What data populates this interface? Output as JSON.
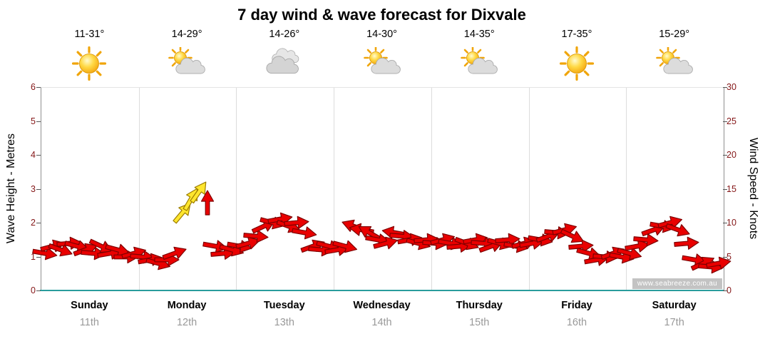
{
  "title": "7 day wind & wave forecast for Dixvale",
  "watermark": "www.seabreeze.com.au",
  "axes": {
    "left_label": "Wave Height - Metres",
    "right_label": "Wind Speed - Knots",
    "wave_ticks": [
      0,
      1,
      2,
      3,
      4,
      5,
      6
    ],
    "wind_ticks": [
      0,
      5,
      10,
      15,
      20,
      25,
      30
    ],
    "wave_range": [
      0,
      6
    ],
    "wind_range": [
      0,
      30
    ]
  },
  "days": [
    {
      "name": "Sunday",
      "date": "11th",
      "temp": "11-31°",
      "icon": "sun"
    },
    {
      "name": "Monday",
      "date": "12th",
      "temp": "14-29°",
      "icon": "sun-cloud"
    },
    {
      "name": "Tuesday",
      "date": "13th",
      "temp": "14-26°",
      "icon": "cloud"
    },
    {
      "name": "Wednesday",
      "date": "14th",
      "temp": "14-30°",
      "icon": "sun-cloud"
    },
    {
      "name": "Thursday",
      "date": "15th",
      "temp": "14-35°",
      "icon": "sun-cloud"
    },
    {
      "name": "Friday",
      "date": "16th",
      "temp": "17-35°",
      "icon": "sun"
    },
    {
      "name": "Saturday",
      "date": "17th",
      "temp": "15-29°",
      "icon": "sun-cloud"
    }
  ],
  "colors": {
    "arrow_red": "#e90000",
    "arrow_red_outline": "#7e0000",
    "arrow_yellow": "#ffe62e",
    "arrow_yellow_outline": "#9c7d00",
    "axis_tick_text": "#841617",
    "baseline": "#2a9d9d",
    "grid": "#dcdcdc",
    "date_text": "#999999"
  },
  "chart_data": {
    "type": "scatter",
    "title": "7 day wind & wave forecast for Dixvale",
    "x_unit": "days",
    "x_range": [
      0,
      7
    ],
    "categories": [
      "Sunday 11th",
      "Monday 12th",
      "Tuesday 13th",
      "Wednesday 14th",
      "Thursday 15th",
      "Friday 16th",
      "Saturday 17th"
    ],
    "wind_range_knots": [
      0,
      30
    ],
    "wave_range_m": [
      0,
      6
    ],
    "arrow_format": [
      "x_days",
      "knots",
      "direction_deg",
      "color_index"
    ],
    "color_map": [
      "red",
      "yellow"
    ],
    "arrows": [
      [
        0.042,
        5.5,
        10,
        0
      ],
      [
        0.125,
        6.5,
        -15,
        0
      ],
      [
        0.208,
        6,
        20,
        0
      ],
      [
        0.292,
        7,
        -5,
        0
      ],
      [
        0.375,
        6.5,
        15,
        0
      ],
      [
        0.458,
        6,
        -20,
        0
      ],
      [
        0.542,
        5.5,
        5,
        0
      ],
      [
        0.625,
        6.5,
        25,
        0
      ],
      [
        0.708,
        5.5,
        -10,
        0
      ],
      [
        0.792,
        6,
        15,
        0
      ],
      [
        0.875,
        5,
        0,
        0
      ],
      [
        0.958,
        5.5,
        -15,
        0
      ],
      [
        1.042,
        5,
        5,
        0
      ],
      [
        1.125,
        4.5,
        -10,
        0
      ],
      [
        1.208,
        4,
        15,
        0
      ],
      [
        1.292,
        4.5,
        0,
        0
      ],
      [
        1.375,
        5.5,
        -20,
        0
      ],
      [
        1.458,
        11.5,
        -50,
        1
      ],
      [
        1.542,
        13.5,
        -60,
        1
      ],
      [
        1.625,
        14.5,
        -55,
        1
      ],
      [
        1.708,
        13,
        -90,
        0
      ],
      [
        1.792,
        6.5,
        10,
        0
      ],
      [
        1.875,
        5.5,
        -5,
        0
      ],
      [
        1.958,
        6,
        15,
        0
      ],
      [
        2.042,
        6.5,
        10,
        0
      ],
      [
        2.125,
        7,
        -15,
        0
      ],
      [
        2.208,
        8,
        5,
        0
      ],
      [
        2.292,
        9.5,
        -25,
        0
      ],
      [
        2.375,
        10,
        15,
        0
      ],
      [
        2.458,
        10.5,
        -10,
        0
      ],
      [
        2.542,
        9.5,
        20,
        0
      ],
      [
        2.625,
        10,
        -5,
        0
      ],
      [
        2.708,
        8.5,
        10,
        0
      ],
      [
        2.792,
        6.5,
        -20,
        0
      ],
      [
        2.875,
        6,
        5,
        0
      ],
      [
        2.958,
        6.5,
        15,
        0
      ],
      [
        3.042,
        6,
        -10,
        0
      ],
      [
        3.125,
        6.5,
        15,
        0
      ],
      [
        3.208,
        9.5,
        -160,
        0
      ],
      [
        3.292,
        9,
        -170,
        0
      ],
      [
        3.375,
        8.5,
        -150,
        0
      ],
      [
        3.458,
        7.5,
        10,
        0
      ],
      [
        3.542,
        7,
        -15,
        0
      ],
      [
        3.625,
        8.5,
        -170,
        0
      ],
      [
        3.708,
        8,
        5,
        0
      ],
      [
        3.792,
        7.5,
        -10,
        0
      ],
      [
        3.875,
        7,
        15,
        0
      ],
      [
        3.958,
        7.5,
        -5,
        0
      ],
      [
        4.042,
        7,
        5,
        0
      ],
      [
        4.125,
        7.5,
        -15,
        0
      ],
      [
        4.208,
        7,
        10,
        0
      ],
      [
        4.292,
        6.5,
        -5,
        0
      ],
      [
        4.375,
        7,
        20,
        0
      ],
      [
        4.458,
        7.5,
        -10,
        0
      ],
      [
        4.542,
        7,
        5,
        0
      ],
      [
        4.625,
        6.5,
        -20,
        0
      ],
      [
        4.708,
        7,
        15,
        0
      ],
      [
        4.792,
        7.5,
        -5,
        0
      ],
      [
        4.875,
        6.5,
        10,
        0
      ],
      [
        4.958,
        7,
        -15,
        0
      ],
      [
        5.042,
        7,
        -10,
        0
      ],
      [
        5.125,
        7.5,
        10,
        0
      ],
      [
        5.208,
        8,
        -20,
        0
      ],
      [
        5.292,
        8.5,
        5,
        0
      ],
      [
        5.375,
        9,
        -15,
        0
      ],
      [
        5.458,
        8,
        25,
        0
      ],
      [
        5.542,
        6.5,
        -5,
        0
      ],
      [
        5.625,
        5.5,
        15,
        0
      ],
      [
        5.708,
        4.5,
        -10,
        0
      ],
      [
        5.792,
        5,
        5,
        0
      ],
      [
        5.875,
        5.5,
        -20,
        0
      ],
      [
        5.958,
        5,
        10,
        0
      ],
      [
        6.042,
        5.5,
        15,
        0
      ],
      [
        6.125,
        6.5,
        -10,
        0
      ],
      [
        6.208,
        7.5,
        5,
        0
      ],
      [
        6.292,
        9,
        -20,
        0
      ],
      [
        6.375,
        9.5,
        10,
        0
      ],
      [
        6.458,
        10,
        -15,
        0
      ],
      [
        6.542,
        9,
        20,
        0
      ],
      [
        6.625,
        7,
        -5,
        0
      ],
      [
        6.708,
        4.5,
        10,
        0
      ],
      [
        6.792,
        4,
        -25,
        0
      ],
      [
        6.875,
        3.5,
        5,
        0
      ],
      [
        6.958,
        4,
        -10,
        0
      ]
    ]
  }
}
